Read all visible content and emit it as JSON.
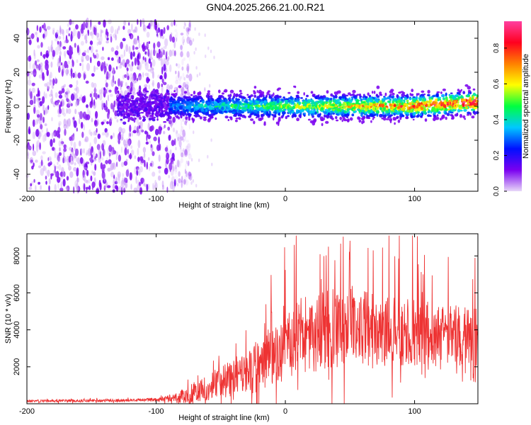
{
  "title": "GN04.2025.266.21.00.R21",
  "chart_data": [
    {
      "type": "heatmap",
      "name": "spectrogram",
      "xlabel": "Height of straight line (km)",
      "ylabel": "Frequency (Hz)",
      "xlim": [
        -200,
        149
      ],
      "ylim": [
        -50,
        50
      ],
      "x_ticks": [
        -200,
        -100,
        0,
        100
      ],
      "y_ticks": [
        -40,
        -20,
        0,
        20,
        40
      ],
      "noise_region": [
        -200,
        -85
      ],
      "signal_center_hz": 0,
      "signal_halfwidth_hz": 7,
      "colorbar": {
        "label": "Normalized spectral amplitude",
        "range": [
          0,
          0.95
        ],
        "ticks": [
          0.0,
          0.2,
          0.4,
          0.6,
          0.8
        ],
        "tick_labels": [
          "0.0",
          "0.2",
          "0.4",
          "0.6",
          "0.8"
        ],
        "colormap": [
          "#e8d8f8",
          "#7a00f0",
          "#0010ff",
          "#00c8ff",
          "#00ff40",
          "#ffff00",
          "#ff8000",
          "#ff0020",
          "#ff40a0"
        ]
      }
    },
    {
      "type": "line",
      "name": "snr",
      "xlabel": "Height of straight line (km)",
      "ylabel": "SNR (10 * v/v)",
      "xlim": [
        -200,
        149
      ],
      "ylim": [
        0,
        9200
      ],
      "x_ticks": [
        -200,
        -100,
        0,
        100
      ],
      "y_ticks": [
        2000,
        4000,
        6000,
        8000
      ],
      "color": "#ee3333",
      "envelope": {
        "x": [
          -200,
          -150,
          -110,
          -95,
          -85,
          -75,
          -60,
          -45,
          -30,
          -20,
          -10,
          0,
          10,
          25,
          40,
          55,
          70,
          90,
          110,
          130,
          149
        ],
        "mean": [
          150,
          170,
          200,
          240,
          320,
          500,
          900,
          1300,
          1700,
          2100,
          2600,
          3100,
          3600,
          3900,
          4100,
          4150,
          4000,
          3900,
          3800,
          3700,
          3650
        ],
        "spread": [
          80,
          90,
          110,
          150,
          300,
          600,
          900,
          1200,
          1500,
          1800,
          2000,
          2300,
          2600,
          2700,
          2700,
          2600,
          2500,
          2300,
          2200,
          2100,
          2000
        ]
      },
      "peak_max": 9100
    }
  ]
}
